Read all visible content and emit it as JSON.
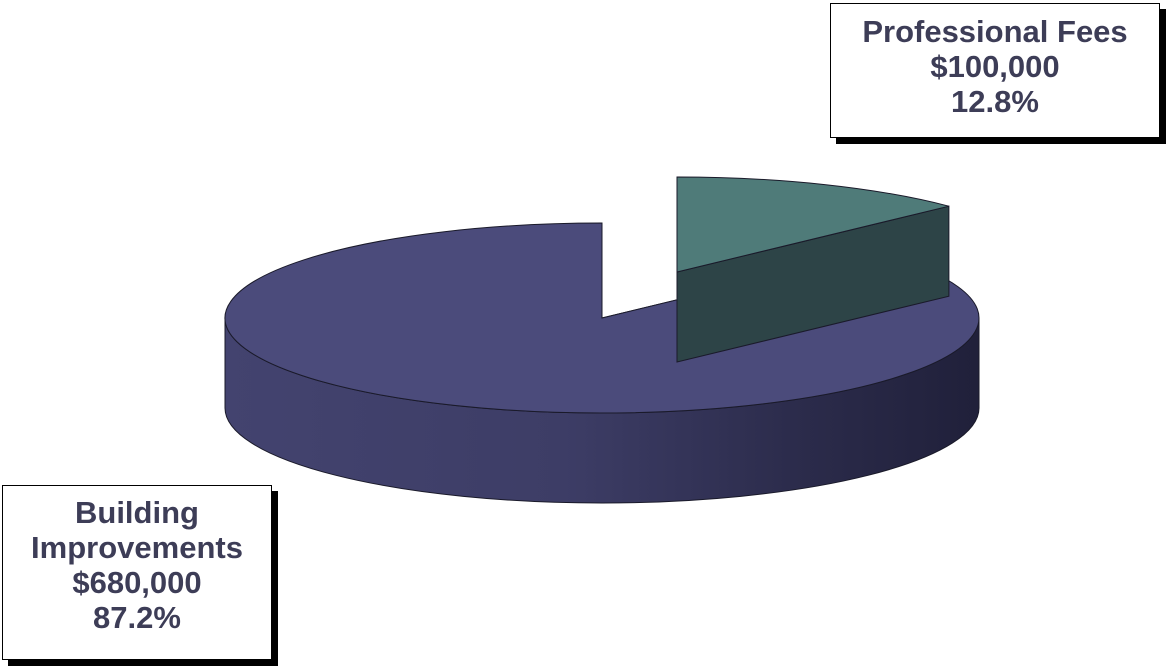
{
  "chart_data": {
    "type": "pie",
    "style": "3d-exploded",
    "title": "",
    "categories": [
      "Professional Fees",
      "Building Improvements"
    ],
    "values": [
      100000,
      680000
    ],
    "percents": [
      12.8,
      87.2
    ],
    "colors": [
      "#4f7b79",
      "#4b4b7b"
    ],
    "side_colors": [
      "#2d4447",
      "#29294a"
    ],
    "legend": "none",
    "labels": [
      {
        "lines": [
          "Professional Fees",
          "$100,000",
          "12.8%"
        ]
      },
      {
        "lines": [
          "Building",
          "Improvements",
          "$680,000",
          "87.2%"
        ]
      }
    ]
  }
}
